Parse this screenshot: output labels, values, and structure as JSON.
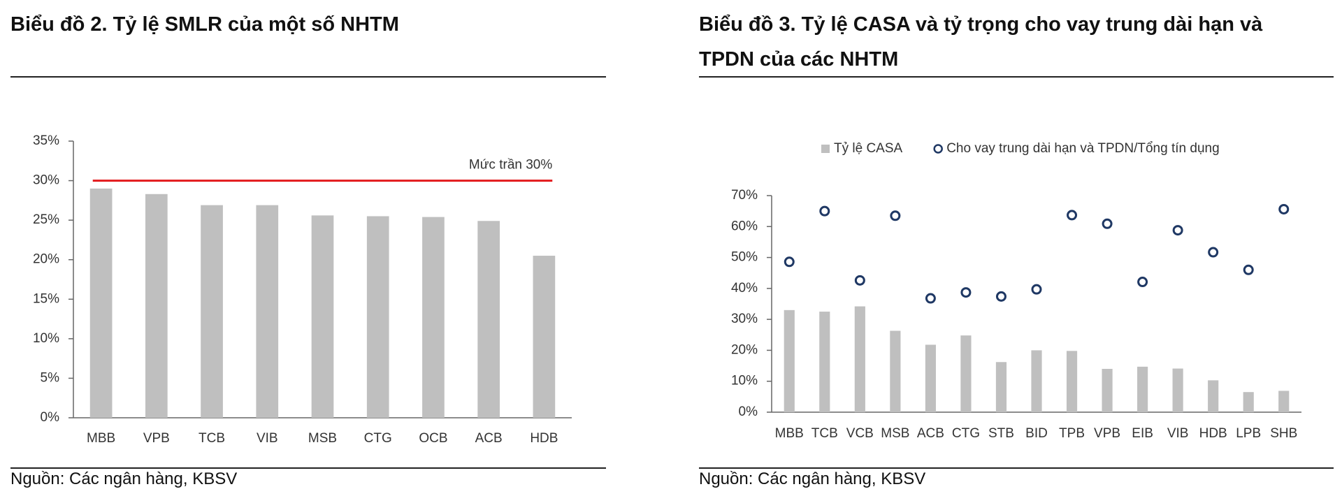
{
  "chart_data": [
    {
      "type": "bar",
      "title": "Biểu đồ 2. Tỷ lệ SMLR của một số NHTM",
      "source": "Nguồn: Các ngân hàng, KBSV",
      "categories": [
        "MBB",
        "VPB",
        "TCB",
        "VIB",
        "MSB",
        "CTG",
        "OCB",
        "ACB",
        "HDB"
      ],
      "series": [
        {
          "name": "SMLR",
          "type": "bar",
          "color": "#bfbfbf",
          "values": [
            29,
            28.3,
            26.9,
            26.9,
            25.6,
            25.5,
            25.4,
            24.9,
            20.5
          ]
        }
      ],
      "ylim": [
        0,
        35
      ],
      "yticks": [
        {
          "value": 0,
          "label": "0%"
        },
        {
          "value": 5,
          "label": "5%"
        },
        {
          "value": 10,
          "label": "10%"
        },
        {
          "value": 15,
          "label": "15%"
        },
        {
          "value": 20,
          "label": "20%"
        },
        {
          "value": 25,
          "label": "25%"
        },
        {
          "value": 30,
          "label": "30%"
        },
        {
          "value": 35,
          "label": "35%"
        }
      ],
      "reference_line": {
        "value": 30,
        "label": "Mức trần 30%",
        "color": "#e31a1c"
      },
      "legend": false
    },
    {
      "type": "combo",
      "title": "Biểu đồ 3. Tỷ lệ CASA và tỷ trọng cho vay trung dài hạn và TPDN của các NHTM",
      "source": "Nguồn: Các ngân hàng, KBSV",
      "categories": [
        "MBB",
        "TCB",
        "VCB",
        "MSB",
        "ACB",
        "CTG",
        "STB",
        "BID",
        "TPB",
        "VPB",
        "EIB",
        "VIB",
        "HDB",
        "LPB",
        "SHB"
      ],
      "series": [
        {
          "name": "Tỷ lệ CASA",
          "type": "bar",
          "color": "#bfbfbf",
          "values": [
            33,
            32.5,
            34.2,
            26.3,
            21.8,
            24.8,
            16.2,
            20,
            19.8,
            14,
            14.7,
            14.1,
            10.3,
            6.5,
            6.9
          ]
        },
        {
          "name": "Cho vay trung dài hạn và TPDN/Tổng tín dụng",
          "type": "scatter",
          "color": "#1f3864",
          "values": [
            48.6,
            65,
            42.6,
            63.5,
            36.8,
            38.7,
            37.4,
            39.7,
            63.7,
            60.9,
            42.1,
            58.8,
            51.7,
            46,
            65.6
          ]
        }
      ],
      "ylim": [
        0,
        70
      ],
      "yticks": [
        {
          "value": 0,
          "label": "0%"
        },
        {
          "value": 10,
          "label": "10%"
        },
        {
          "value": 20,
          "label": "20%"
        },
        {
          "value": 30,
          "label": "30%"
        },
        {
          "value": 40,
          "label": "40%"
        },
        {
          "value": 50,
          "label": "50%"
        },
        {
          "value": 60,
          "label": "60%"
        },
        {
          "value": 70,
          "label": "70%"
        }
      ],
      "legend": true
    }
  ]
}
